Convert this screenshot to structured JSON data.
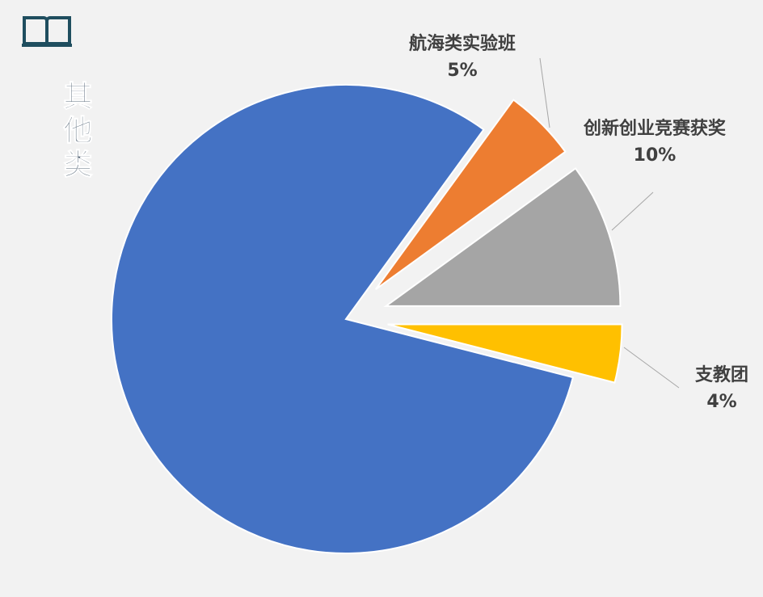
{
  "chart_data": {
    "type": "pie",
    "title": "其他类",
    "categories": [
      "航海类实验班",
      "创新创业竞赛获奖",
      "支教团",
      null
    ],
    "values": [
      5,
      10,
      4,
      81
    ],
    "value_labels": [
      "5%",
      "10%",
      "4%",
      null
    ],
    "colors": [
      "#ed7d31",
      "#a5a5a5",
      "#ffc000",
      "#4472c4"
    ],
    "explode": [
      true,
      true,
      true,
      false
    ]
  }
}
